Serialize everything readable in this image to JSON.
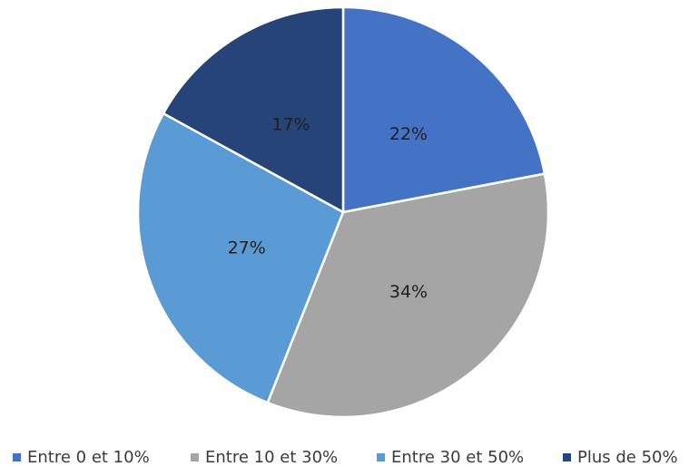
{
  "chart_data": {
    "type": "pie",
    "title": "",
    "categories": [
      "Entre 0 et 10%",
      "Entre 10 et 30%",
      "Entre 30 et 50%",
      "Plus de 50%"
    ],
    "values": [
      22,
      34,
      27,
      17
    ],
    "labels": [
      "22%",
      "34%",
      "27%",
      "17%"
    ],
    "colors": [
      "#4472c4",
      "#a5a5a5",
      "#5b9bd5",
      "#264478"
    ],
    "legend_position": "bottom",
    "start_angle": "12 o'clock",
    "direction": "clockwise"
  }
}
